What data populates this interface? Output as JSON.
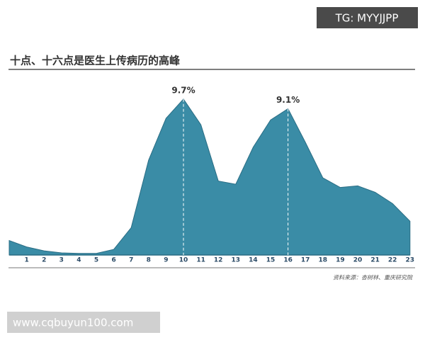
{
  "chart_data": {
    "type": "area",
    "title": "十点、十六点是医生上传病历的高峰",
    "categories": [
      null,
      "1",
      "2",
      "3",
      "4",
      "5",
      "6",
      "7",
      "8",
      "9",
      "10",
      "11",
      "12",
      "13",
      "14",
      "15",
      "16",
      "17",
      "18",
      "19",
      "20",
      "21",
      "22",
      "23"
    ],
    "values": [
      0.9,
      0.5,
      0.26,
      0.13,
      0.1,
      0.1,
      0.35,
      1.7,
      5.9,
      8.5,
      9.7,
      8.1,
      4.6,
      4.4,
      6.7,
      8.4,
      9.1,
      7.0,
      4.8,
      4.2,
      4.3,
      3.9,
      3.2,
      2.1
    ],
    "value_labels": [
      null,
      null,
      null,
      null,
      null,
      null,
      null,
      null,
      null,
      null,
      "9.7%",
      null,
      null,
      null,
      null,
      null,
      "9.1%",
      null,
      null,
      null,
      null,
      null,
      null,
      null
    ],
    "color": "#3a8ca6",
    "source": "资料来源：杏树林、重庆研究院"
  },
  "watermarks": {
    "top": "TG: MYYJJPP",
    "bottom": "www.cqbuyun100.com"
  }
}
